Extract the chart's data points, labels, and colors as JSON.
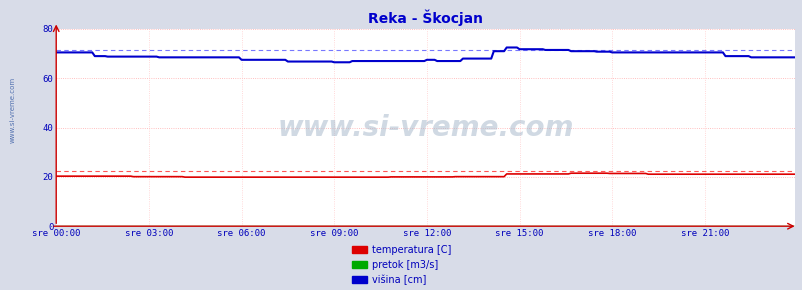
{
  "title": "Reka - Škocjan",
  "title_color": "#0000cc",
  "background_color": "#d8dce8",
  "plot_bg_color": "#ffffff",
  "grid_color_h": "#ffaaaa",
  "grid_color_v": "#ffcccc",
  "xlabel_color": "#0000bb",
  "ylabel_color": "#0000bb",
  "watermark": "www.si-vreme.com",
  "xlim": [
    0,
    287
  ],
  "ylim": [
    0,
    80
  ],
  "yticks": [
    0,
    20,
    40,
    60,
    80
  ],
  "xtick_labels": [
    "sre 00:00",
    "sre 03:00",
    "sre 06:00",
    "sre 09:00",
    "sre 12:00",
    "sre 15:00",
    "sre 18:00",
    "sre 21:00"
  ],
  "xtick_positions": [
    0,
    36,
    72,
    108,
    144,
    180,
    216,
    252
  ],
  "temp_color": "#dd0000",
  "temp_dashed_color": "#ff5555",
  "temp_dashed_value": 22.3,
  "flow_color": "#00aa00",
  "height_color": "#0000cc",
  "height_dashed_color": "#7777ff",
  "height_dashed_value": 71.5,
  "legend_labels": [
    "temperatura [C]",
    "pretok [m3/s]",
    "višina [cm]"
  ],
  "legend_colors": [
    "#dd0000",
    "#00aa00",
    "#0000cc"
  ],
  "side_watermark": "www.si-vreme.com"
}
